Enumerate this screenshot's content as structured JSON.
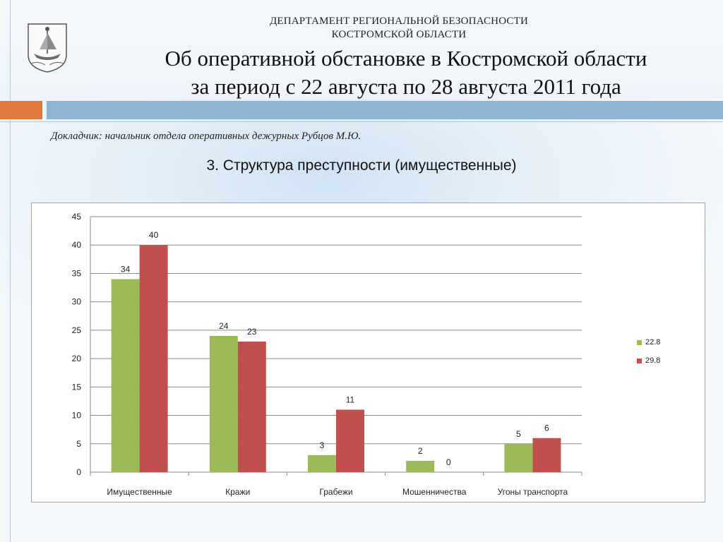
{
  "header": {
    "dept_line1": "ДЕПАРТАМЕНТ РЕГИОНАЛЬНОЙ БЕЗОПАСНОСТИ",
    "dept_line2": "КОСТРОМСКОЙ ОБЛАСТИ",
    "title_line1": "Об оперативной обстановке в Костромской области",
    "title_line2": "за период с 22 августа по 28 августа 2011 года"
  },
  "speaker": "Докладчик: начальник отдела оперативных дежурных Рубцов М.Ю.",
  "section_title": "3. Структура преступности (имущественные)",
  "colors": {
    "accent_orange": "#e07a3c",
    "accent_blue": "#8fb3d2"
  },
  "chart_data": {
    "type": "bar",
    "categories": [
      "Имущественные",
      "Кражи",
      "Грабежи",
      "Мошенничества",
      "Угоны транспорта"
    ],
    "series": [
      {
        "name": "22.8",
        "color": "#9bbb59",
        "values": [
          34,
          24,
          3,
          2,
          5
        ]
      },
      {
        "name": "29.8",
        "color": "#c0504d",
        "values": [
          40,
          23,
          11,
          0,
          6
        ]
      }
    ],
    "ylim": [
      0,
      45
    ],
    "yticks": [
      0,
      5,
      10,
      15,
      20,
      25,
      30,
      35,
      40,
      45
    ],
    "grid": true,
    "data_labels": true,
    "legend_position": "right"
  }
}
